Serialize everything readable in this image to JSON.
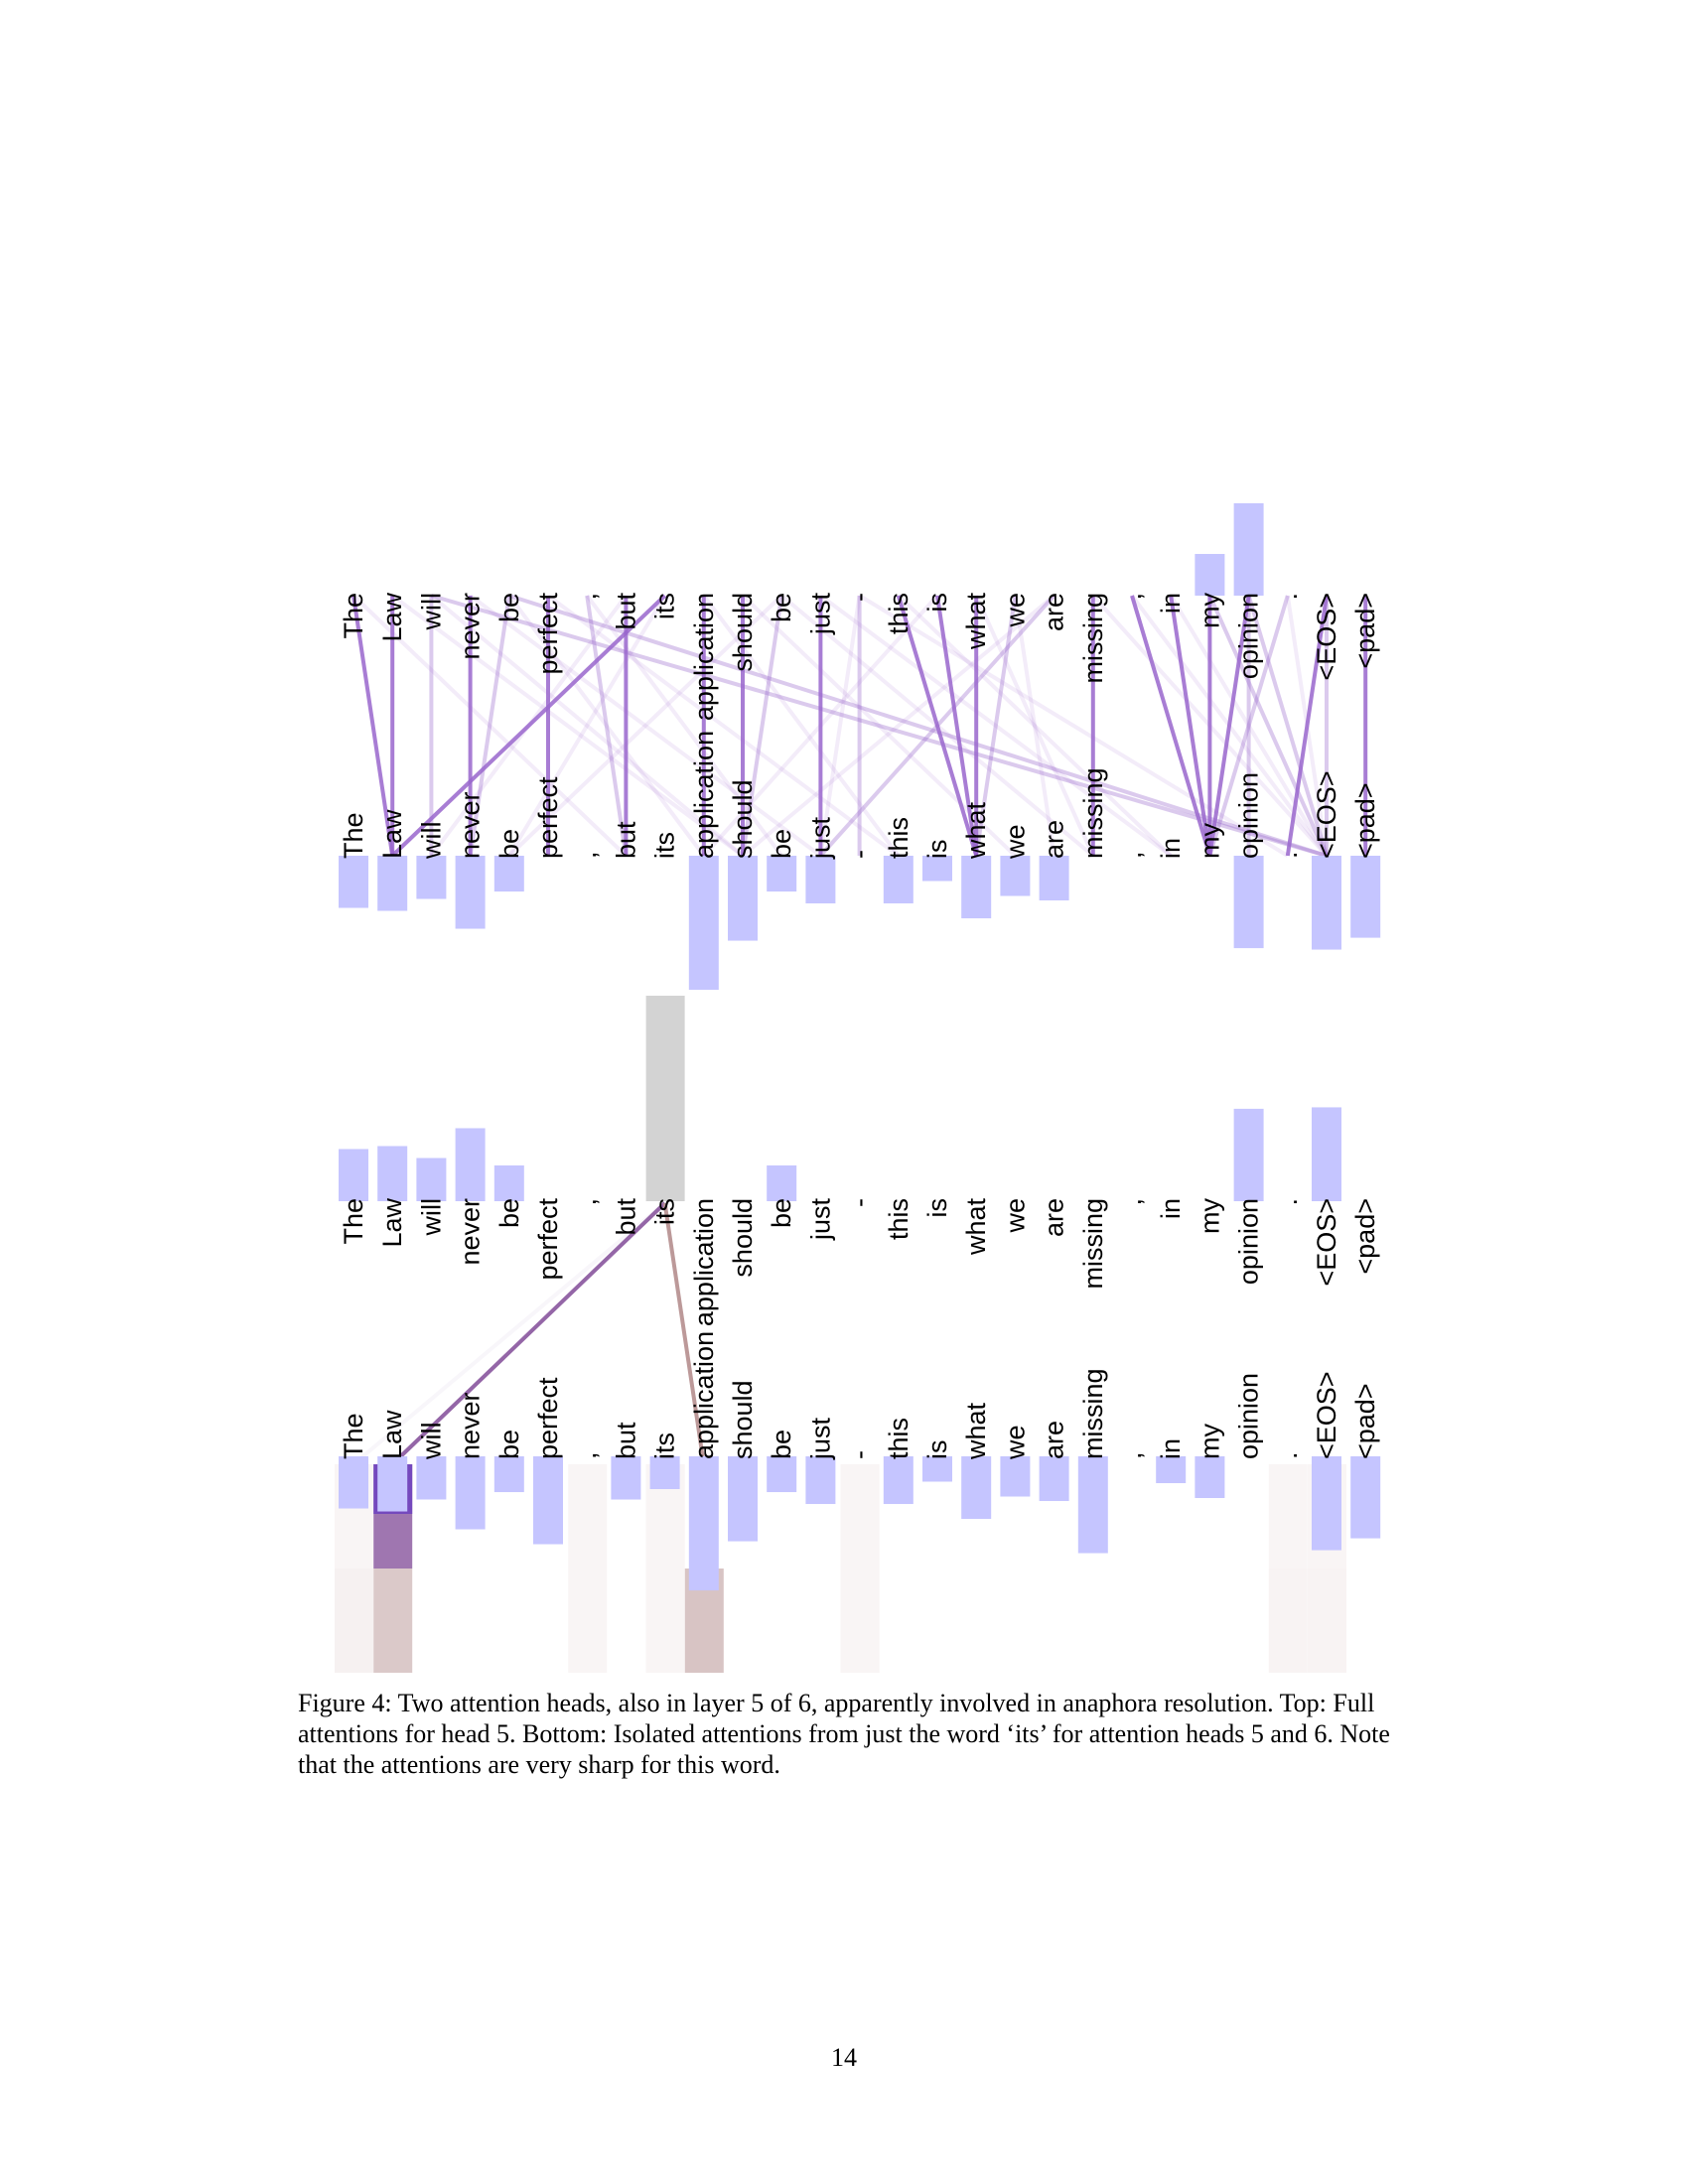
{
  "figure": {
    "tokens": [
      "The",
      "Law",
      "will",
      "never",
      "be",
      "perfect",
      ",",
      "but",
      "its",
      "application",
      "should",
      "be",
      "just",
      "-",
      "this",
      "is",
      "what",
      "we",
      "are",
      "missing",
      ",",
      "in",
      "my",
      "opinion",
      ".",
      "<EOS>",
      "<pad>"
    ],
    "colors": {
      "highlight": "#c5c5ff",
      "attention": "#9966cc",
      "head5": "#8e5ea2",
      "head6": "#b89494",
      "selected": "#d3d3d3"
    },
    "top_panel": {
      "label": "Full attentions for head 5",
      "source_highlight": [
        "my",
        "opinion"
      ],
      "target_highlight": [
        "The",
        "Law",
        "will",
        "never",
        "be",
        "application",
        "should",
        "be",
        "just",
        "this",
        "is",
        "what",
        "we",
        "are",
        "opinion",
        "<EOS>",
        "<pad>"
      ],
      "strong_attentions": [
        [
          0,
          1
        ],
        [
          1,
          1
        ],
        [
          3,
          3
        ],
        [
          5,
          5
        ],
        [
          7,
          7
        ],
        [
          8,
          1
        ],
        [
          9,
          9
        ],
        [
          10,
          10
        ],
        [
          12,
          12
        ],
        [
          14,
          16
        ],
        [
          15,
          16
        ],
        [
          16,
          16
        ],
        [
          19,
          19
        ],
        [
          20,
          22
        ],
        [
          21,
          22
        ],
        [
          22,
          22
        ],
        [
          23,
          22
        ],
        [
          25,
          24
        ],
        [
          26,
          26
        ]
      ],
      "medium_attentions": [
        [
          2,
          2
        ],
        [
          4,
          3
        ],
        [
          6,
          7
        ],
        [
          11,
          10
        ],
        [
          13,
          13
        ],
        [
          17,
          16
        ],
        [
          18,
          12
        ],
        [
          23,
          23
        ],
        [
          24,
          22
        ],
        [
          25,
          25
        ],
        [
          2,
          25
        ],
        [
          4,
          25
        ],
        [
          22,
          25
        ],
        [
          23,
          25
        ]
      ],
      "faint_attentions": [
        [
          2,
          10
        ],
        [
          4,
          9
        ],
        [
          6,
          11
        ],
        [
          9,
          14
        ],
        [
          10,
          17
        ],
        [
          11,
          19
        ],
        [
          12,
          21
        ],
        [
          13,
          12
        ],
        [
          16,
          19
        ],
        [
          17,
          18
        ],
        [
          19,
          25
        ],
        [
          3,
          12
        ],
        [
          5,
          14
        ],
        [
          0,
          7
        ],
        [
          1,
          10
        ],
        [
          7,
          2
        ],
        [
          14,
          21
        ],
        [
          15,
          9
        ],
        [
          18,
          10
        ],
        [
          24,
          25
        ],
        [
          20,
          25
        ],
        [
          21,
          25
        ],
        [
          8,
          4
        ],
        [
          11,
          4
        ],
        [
          13,
          24
        ]
      ]
    },
    "bottom_panel": {
      "label": "Isolated attentions from its for heads 5 and 6",
      "selected_token": "its",
      "source_highlight": [
        "The",
        "Law",
        "will",
        "never",
        "be",
        "opinion",
        "<EOS>"
      ],
      "target_highlight": [
        "The",
        "Law",
        "will",
        "never",
        "be",
        "perfect",
        "but",
        "its",
        "application",
        "should",
        "be",
        "just",
        "this",
        "is",
        "what",
        "we",
        "are",
        "missing",
        "in",
        "my",
        "<EOS>",
        "<pad>"
      ],
      "head5_weights": [
        0,
        0.85,
        0,
        0,
        0,
        0,
        0,
        0,
        0,
        0,
        0,
        0,
        0,
        0,
        0,
        0,
        0,
        0,
        0,
        0,
        0,
        0,
        0,
        0,
        0,
        0,
        0
      ],
      "head6_weights": [
        0.04,
        0.5,
        0,
        0,
        0,
        0,
        0,
        0,
        0,
        0.55,
        0,
        0,
        0,
        0,
        0,
        0,
        0,
        0,
        0,
        0,
        0,
        0,
        0,
        0,
        0.02,
        0.02,
        0
      ],
      "faint_columns": [
        0,
        6,
        8,
        13,
        24,
        25
      ]
    }
  },
  "caption": "Figure 4: Two attention heads, also in layer 5 of 6, apparently involved in anaphora resolution. Top: Full attentions for head 5. Bottom: Isolated attentions from just the word ‘its’ for attention heads 5 and 6. Note that the attentions are very sharp for this word.",
  "page_number": "14"
}
